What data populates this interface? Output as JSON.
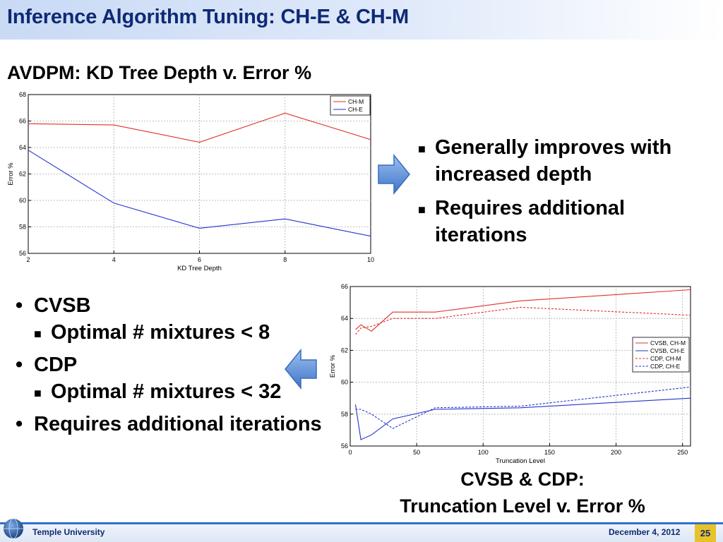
{
  "slide": {
    "title": "Inference Algorithm Tuning: CH-E & CH-M"
  },
  "chart1_heading": "AVDPM: KD Tree Depth v. Error %",
  "chart2_heading_line1": "CVSB & CDP:",
  "chart2_heading_line2": "Truncation Level v. Error %",
  "right_bullets": [
    "Generally improves with increased depth",
    "Requires additional iterations"
  ],
  "left_bullets": {
    "cvsb": "CVSB",
    "cvsb_sub": "Optimal # mixtures < 8",
    "cdp": "CDP",
    "cdp_sub": "Optimal # mixtures < 32",
    "extra": "Requires additional iterations"
  },
  "footer": {
    "university": "Temple University",
    "date": "December 4, 2012",
    "page": "25"
  },
  "icons": {
    "right_arrow": "arrow-right-icon",
    "left_arrow": "arrow-left-icon",
    "logo": "globe-logo-icon",
    "bullet": "square-bullet-icon"
  },
  "colors": {
    "title": "#0f2a73",
    "series_red": "#e0302a",
    "series_blue": "#2233cc",
    "arrow": "#5b8fdc"
  },
  "chart_data": [
    {
      "type": "line",
      "xlabel": "KD Tree Depth",
      "ylabel": "Error %",
      "xlim": [
        2,
        10
      ],
      "ylim": [
        56,
        68
      ],
      "xticks": [
        2,
        4,
        6,
        8,
        10
      ],
      "yticks": [
        56,
        58,
        60,
        62,
        64,
        66,
        68
      ],
      "grid": true,
      "legend": "top-right",
      "series": [
        {
          "name": "CH-M",
          "color": "#e0302a",
          "dash": false,
          "x": [
            2,
            4,
            6,
            8,
            10
          ],
          "y": [
            65.8,
            65.7,
            64.4,
            66.6,
            64.6
          ]
        },
        {
          "name": "CH-E",
          "color": "#2233cc",
          "dash": false,
          "x": [
            2,
            4,
            6,
            8,
            10
          ],
          "y": [
            63.8,
            59.8,
            57.9,
            58.6,
            57.3
          ]
        }
      ]
    },
    {
      "type": "line",
      "xlabel": "Truncation Level",
      "ylabel": "Error %",
      "xlim": [
        0,
        256
      ],
      "ylim": [
        56,
        66
      ],
      "xticks": [
        0,
        50,
        100,
        150,
        200,
        250
      ],
      "yticks": [
        56,
        58,
        60,
        62,
        64,
        66
      ],
      "grid": true,
      "legend": "right",
      "series": [
        {
          "name": "CVSB, CH-M",
          "color": "#e0302a",
          "dash": false,
          "x": [
            4,
            8,
            12,
            16,
            32,
            64,
            128,
            256
          ],
          "y": [
            63.3,
            63.6,
            63.4,
            63.2,
            64.4,
            64.4,
            65.1,
            65.8
          ]
        },
        {
          "name": "CVSB, CH-E",
          "color": "#2233cc",
          "dash": false,
          "x": [
            4,
            8,
            16,
            32,
            64,
            128,
            256
          ],
          "y": [
            58.6,
            56.4,
            56.7,
            57.7,
            58.3,
            58.4,
            59.0
          ]
        },
        {
          "name": "CDP, CH-M",
          "color": "#e0302a",
          "dash": true,
          "x": [
            4,
            8,
            16,
            32,
            64,
            128,
            256
          ],
          "y": [
            63.0,
            63.4,
            63.5,
            64.0,
            64.0,
            64.7,
            64.2
          ]
        },
        {
          "name": "CDP, CH-E",
          "color": "#2233cc",
          "dash": true,
          "x": [
            4,
            8,
            16,
            32,
            64,
            128,
            256
          ],
          "y": [
            58.3,
            58.3,
            58.0,
            57.1,
            58.4,
            58.5,
            59.7
          ]
        }
      ]
    }
  ]
}
